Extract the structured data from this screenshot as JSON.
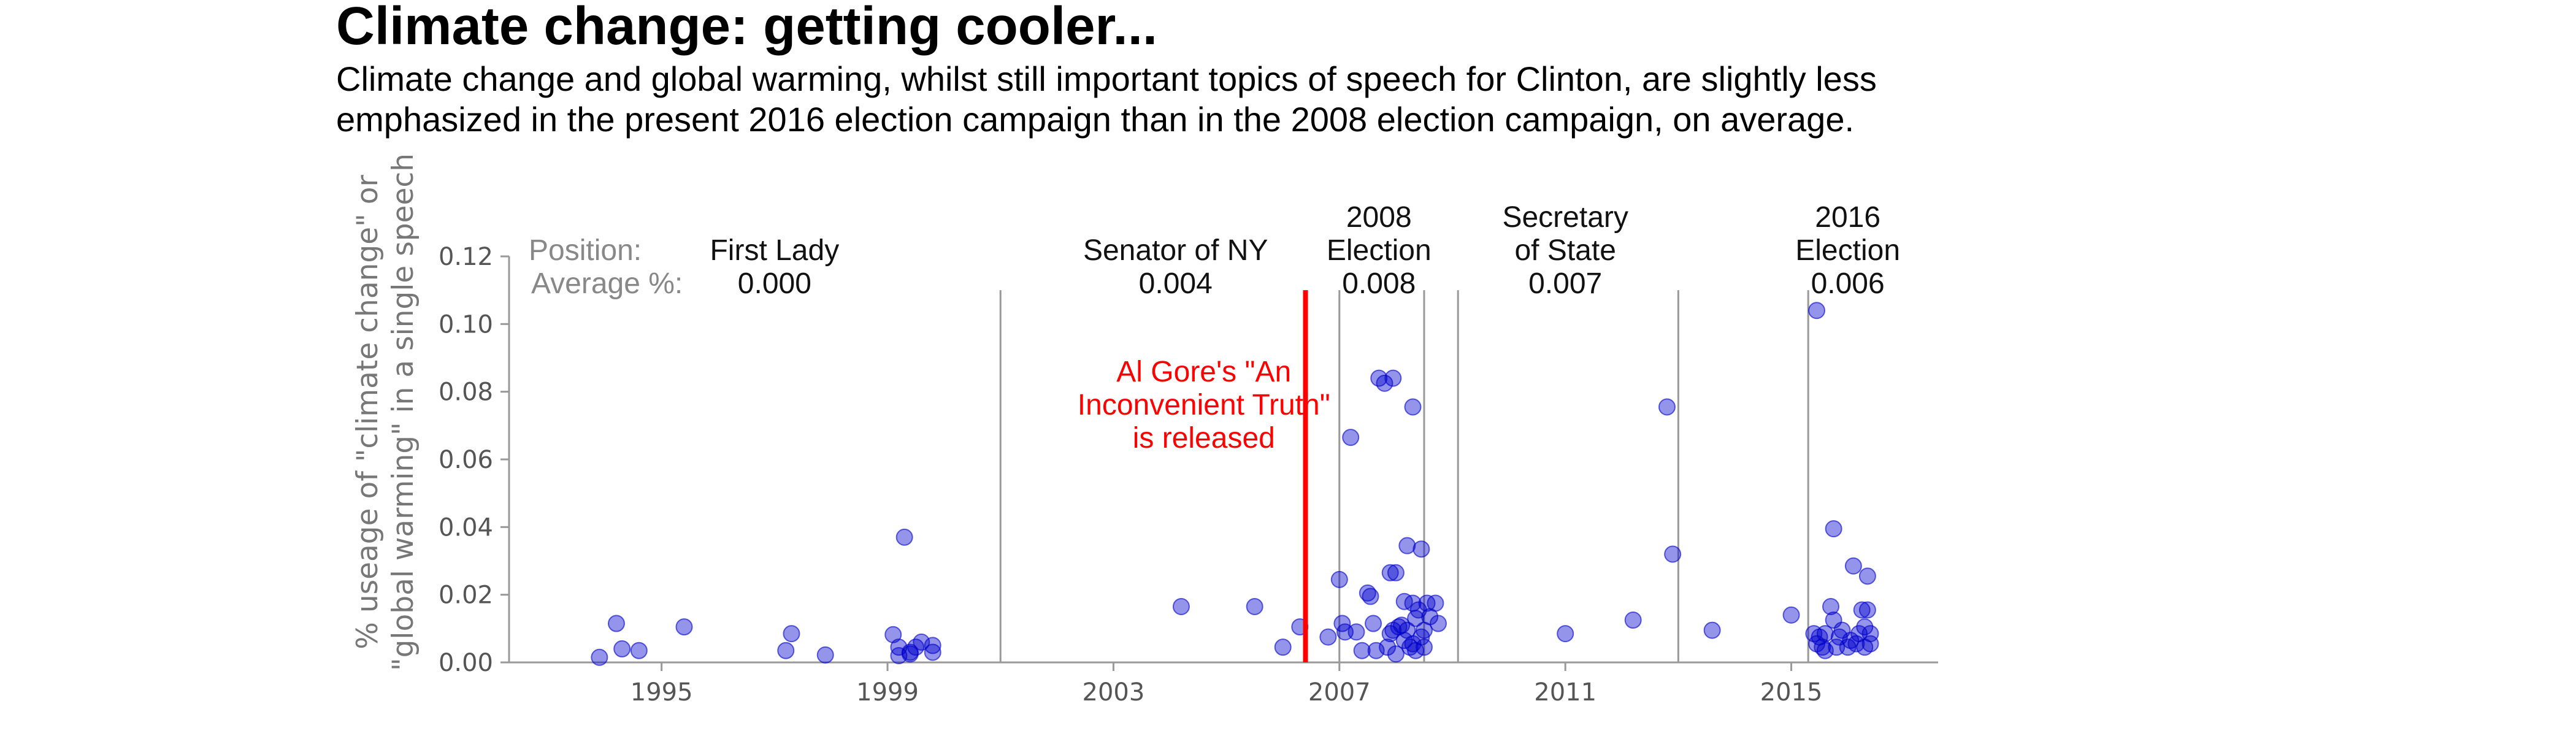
{
  "chart_data": {
    "type": "scatter",
    "title": "Climate change: getting cooler...",
    "subtitle_lines": [
      "Climate change and global warming, whilst still important topics of speech for Clinton, are slightly less",
      "emphasized in the present 2016 election campaign than in the 2008 election campaign, on average."
    ],
    "ylabel_lines": [
      "% useage of \"climate change\" or",
      "\"global warming\" in a single speech"
    ],
    "xlabel": "",
    "xlim": [
      1992.3,
      2017.6
    ],
    "ylim": [
      0,
      0.12
    ],
    "xticks": [
      1995,
      1999,
      2003,
      2007,
      2011,
      2015
    ],
    "xtick_labels": [
      "1995",
      "1999",
      "2003",
      "2007",
      "2011",
      "2015"
    ],
    "yticks": [
      0.0,
      0.02,
      0.04,
      0.06,
      0.08,
      0.1,
      0.12
    ],
    "ytick_labels": [
      "0.00",
      "0.02",
      "0.04",
      "0.06",
      "0.08",
      "0.10",
      "0.12"
    ],
    "point_color": "#0000cc",
    "header_position_label": "Position:",
    "header_average_label": "Average %:",
    "period_dividers": [
      2001.0,
      2007.0,
      2008.5,
      2009.1,
      2013.0,
      2015.3
    ],
    "periods": [
      {
        "name_lines": [
          "First Lady"
        ],
        "average": "0.000",
        "x_center": 1997.0
      },
      {
        "name_lines": [
          "Senator of NY"
        ],
        "average": "0.004",
        "x_center": 2004.1
      },
      {
        "name_lines": [
          "2008",
          "Election"
        ],
        "average": "0.008",
        "x_center": 2007.7
      },
      {
        "name_lines": [
          "Secretary",
          "of State"
        ],
        "average": "0.007",
        "x_center": 2011.0
      },
      {
        "name_lines": [
          "2016",
          "Election"
        ],
        "average": "0.006",
        "x_center": 2016.0
      }
    ],
    "annotation": {
      "lines": [
        "Al Gore's \"An",
        "Inconvenient Truth\"",
        "is released"
      ],
      "x": 2006.4,
      "color": "#ff0000",
      "text_x_center": 2004.6,
      "text_top_y": 0.083
    },
    "points": [
      [
        1993.9,
        0.0015
      ],
      [
        1994.2,
        0.0115
      ],
      [
        1994.3,
        0.004
      ],
      [
        1994.6,
        0.0035
      ],
      [
        1995.4,
        0.0105
      ],
      [
        1997.2,
        0.0035
      ],
      [
        1997.3,
        0.0085
      ],
      [
        1997.9,
        0.0022
      ],
      [
        1999.1,
        0.0082
      ],
      [
        1999.3,
        0.037
      ],
      [
        1999.2,
        0.0045
      ],
      [
        1999.2,
        0.002
      ],
      [
        1999.4,
        0.003
      ],
      [
        1999.5,
        0.0045
      ],
      [
        1999.6,
        0.006
      ],
      [
        1999.8,
        0.005
      ],
      [
        1999.8,
        0.003
      ],
      [
        1999.4,
        0.0025
      ],
      [
        2004.2,
        0.0165
      ],
      [
        2005.5,
        0.0165
      ],
      [
        2006.0,
        0.0045
      ],
      [
        2006.3,
        0.0105
      ],
      [
        2006.8,
        0.0075
      ],
      [
        2007.0,
        0.0245
      ],
      [
        2007.05,
        0.0115
      ],
      [
        2007.1,
        0.009
      ],
      [
        2007.2,
        0.0665
      ],
      [
        2007.3,
        0.009
      ],
      [
        2007.4,
        0.0035
      ],
      [
        2007.5,
        0.0205
      ],
      [
        2007.55,
        0.0195
      ],
      [
        2007.6,
        0.0115
      ],
      [
        2007.65,
        0.0035
      ],
      [
        2007.7,
        0.084
      ],
      [
        2007.8,
        0.0825
      ],
      [
        2007.85,
        0.0045
      ],
      [
        2007.9,
        0.0085
      ],
      [
        2007.9,
        0.0265
      ],
      [
        2007.95,
        0.084
      ],
      [
        2007.95,
        0.0095
      ],
      [
        2008.0,
        0.0265
      ],
      [
        2008.0,
        0.0025
      ],
      [
        2008.05,
        0.0105
      ],
      [
        2008.1,
        0.011
      ],
      [
        2008.15,
        0.018
      ],
      [
        2008.15,
        0.0065
      ],
      [
        2008.2,
        0.0345
      ],
      [
        2008.2,
        0.0095
      ],
      [
        2008.25,
        0.0045
      ],
      [
        2008.3,
        0.0755
      ],
      [
        2008.3,
        0.0175
      ],
      [
        2008.3,
        0.0055
      ],
      [
        2008.35,
        0.013
      ],
      [
        2008.35,
        0.0035
      ],
      [
        2008.4,
        0.0155
      ],
      [
        2008.45,
        0.0075
      ],
      [
        2008.45,
        0.0335
      ],
      [
        2008.5,
        0.0095
      ],
      [
        2008.5,
        0.0045
      ],
      [
        2008.55,
        0.0175
      ],
      [
        2008.6,
        0.0135
      ],
      [
        2008.7,
        0.0175
      ],
      [
        2008.75,
        0.0115
      ],
      [
        2011.0,
        0.0085
      ],
      [
        2012.2,
        0.0125
      ],
      [
        2012.8,
        0.0755
      ],
      [
        2012.9,
        0.032
      ],
      [
        2013.6,
        0.0095
      ],
      [
        2015.0,
        0.014
      ],
      [
        2015.45,
        0.104
      ],
      [
        2015.4,
        0.0085
      ],
      [
        2015.45,
        0.0055
      ],
      [
        2015.5,
        0.0075
      ],
      [
        2015.55,
        0.0045
      ],
      [
        2015.6,
        0.0085
      ],
      [
        2015.6,
        0.0035
      ],
      [
        2015.7,
        0.0165
      ],
      [
        2015.75,
        0.0125
      ],
      [
        2015.75,
        0.0395
      ],
      [
        2015.8,
        0.0045
      ],
      [
        2015.85,
        0.0075
      ],
      [
        2015.9,
        0.0095
      ],
      [
        2016.0,
        0.0045
      ],
      [
        2016.05,
        0.0065
      ],
      [
        2016.1,
        0.0285
      ],
      [
        2016.15,
        0.0055
      ],
      [
        2016.2,
        0.0085
      ],
      [
        2016.25,
        0.0155
      ],
      [
        2016.3,
        0.0045
      ],
      [
        2016.3,
        0.0105
      ],
      [
        2016.35,
        0.0255
      ],
      [
        2016.35,
        0.0155
      ],
      [
        2016.4,
        0.0055
      ],
      [
        2016.4,
        0.0085
      ]
    ]
  }
}
